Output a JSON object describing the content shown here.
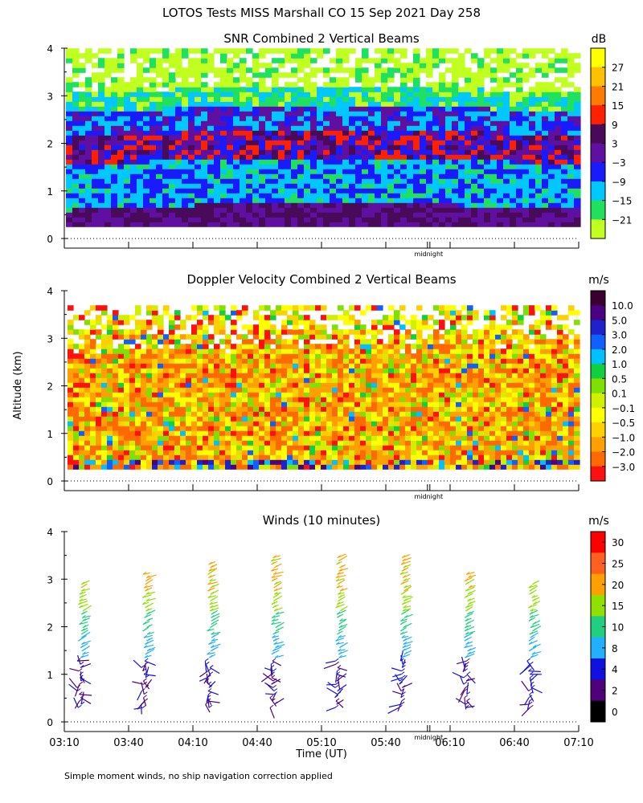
{
  "page": {
    "title": "LOTOS Tests MISS Marshall CO  15 Sep 2021 Day 258",
    "ylabel": "Altitude (km)",
    "footnote": "Simple moment winds, no ship navigation correction applied"
  },
  "chart_data": [
    {
      "type": "heatmap",
      "title": "SNR Combined 2 Vertical Beams",
      "colorbar": {
        "unit": "dB",
        "labels": [
          "27",
          "21",
          "15",
          "9",
          "3",
          "−3",
          "−9",
          "−15",
          "−21"
        ],
        "colors": [
          "#ffff00",
          "#ffc000",
          "#ff7a00",
          "#ff2000",
          "#4a0a5a",
          "#6010a0",
          "#1a1aff",
          "#00c8ff",
          "#20e060",
          "#c0ff20"
        ]
      },
      "ylim": [
        0,
        4
      ],
      "yticks": [
        "0",
        "1",
        "2",
        "3",
        "4"
      ],
      "data_range_km": [
        0.25,
        3.9
      ],
      "marker": "midnight",
      "bands": [
        {
          "from": 0.25,
          "to": 0.6,
          "level": "6 to 12 dB"
        },
        {
          "from": 0.6,
          "to": 1.5,
          "level": "-9 to 3 dB"
        },
        {
          "from": 1.5,
          "to": 2.1,
          "level": "3 to 15 dB"
        },
        {
          "from": 2.1,
          "to": 2.6,
          "level": "-3 to 3 dB"
        },
        {
          "from": 2.6,
          "to": 3.0,
          "level": "-15 to -9 dB"
        },
        {
          "from": 3.0,
          "to": 3.9,
          "level": "-21 to -15 dB"
        }
      ]
    },
    {
      "type": "heatmap",
      "title": "Doppler Velocity Combined 2 Vertical Beams",
      "colorbar": {
        "unit": "m/s",
        "labels": [
          "10.0",
          "5.0",
          "3.0",
          "2.0",
          "1.0",
          "0.5",
          "0.1",
          "−0.1",
          "−0.5",
          "−1.0",
          "−2.0",
          "−3.0"
        ],
        "colors": [
          "#3a0030",
          "#4a0080",
          "#2020cc",
          "#1060ff",
          "#00c0ff",
          "#10d040",
          "#80e000",
          "#d0f000",
          "#ffff00",
          "#ffd000",
          "#ffa000",
          "#ff6a00",
          "#ff1010"
        ]
      },
      "ylim": [
        0,
        4
      ],
      "yticks": [
        "0",
        "1",
        "2",
        "3",
        "4"
      ],
      "data_range_km": [
        0.25,
        3.7
      ],
      "marker": "midnight"
    },
    {
      "type": "scatter",
      "title": "Winds (10 minutes)",
      "colorbar": {
        "unit": "m/s",
        "labels": [
          "30",
          "25",
          "20",
          "15",
          "10",
          "8",
          "4",
          "2",
          "0"
        ],
        "colors": [
          "#ff0000",
          "#ff6020",
          "#ffa000",
          "#90e000",
          "#20d080",
          "#20b0ff",
          "#1010e0",
          "#50007a",
          "#000000"
        ]
      },
      "ylim": [
        0,
        4
      ],
      "yticks": [
        "0",
        "1",
        "2",
        "3",
        "4"
      ],
      "xticks": [
        "03:10",
        "03:40",
        "04:10",
        "04:40",
        "05:10",
        "05:40",
        "06:10",
        "06:40",
        "07:10"
      ],
      "xlabel": "Time (UT)",
      "marker": "midnight",
      "profile_times": [
        "03:30",
        "04:00",
        "04:30",
        "05:00",
        "05:30",
        "06:00",
        "06:30",
        "07:00"
      ],
      "profile_top_km": [
        2.9,
        3.1,
        3.35,
        3.5,
        3.45,
        3.45,
        3.15,
        2.95
      ]
    }
  ]
}
